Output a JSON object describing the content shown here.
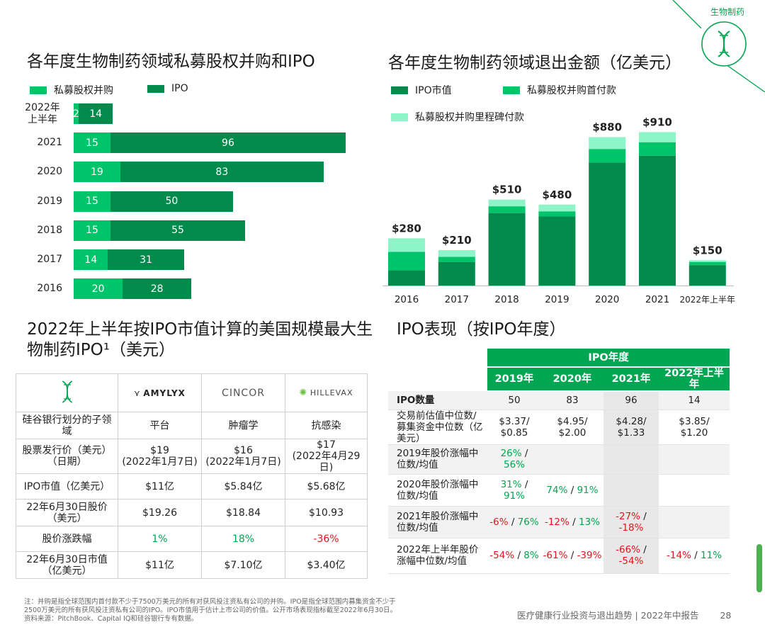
{
  "corner": {
    "label": "生物制药",
    "icon": "dna-icon"
  },
  "colors": {
    "dark_green": "#008a4b",
    "mid_green": "#00c46a",
    "light_green": "#8ef5c8",
    "accent": "#00a651",
    "neg": "#e0161b"
  },
  "left_chart": {
    "title": "各年度生物制药领域私募股权并购和IPO",
    "legend": [
      "私募股权并购",
      "IPO"
    ],
    "rows": [
      {
        "label_line1": "2022年",
        "label_line2": "上半年",
        "pe": 2,
        "ipo": 14
      },
      {
        "label_line1": "2021",
        "label_line2": "",
        "pe": 15,
        "ipo": 96
      },
      {
        "label_line1": "2020",
        "label_line2": "",
        "pe": 19,
        "ipo": 83
      },
      {
        "label_line1": "2019",
        "label_line2": "",
        "pe": 15,
        "ipo": 50
      },
      {
        "label_line1": "2018",
        "label_line2": "",
        "pe": 15,
        "ipo": 55
      },
      {
        "label_line1": "2017",
        "label_line2": "",
        "pe": 14,
        "ipo": 31
      },
      {
        "label_line1": "2016",
        "label_line2": "",
        "pe": 20,
        "ipo": 28
      }
    ]
  },
  "chart_data": [
    {
      "type": "bar",
      "orientation": "horizontal",
      "stacked": true,
      "title": "各年度生物制药领域私募股权并购和IPO",
      "categories": [
        "2022年上半年",
        "2021",
        "2020",
        "2019",
        "2018",
        "2017",
        "2016"
      ],
      "series": [
        {
          "name": "私募股权并购",
          "values": [
            2,
            15,
            19,
            15,
            15,
            14,
            20
          ]
        },
        {
          "name": "IPO",
          "values": [
            14,
            96,
            83,
            50,
            55,
            31,
            28
          ]
        }
      ],
      "legend_position": "top-left"
    },
    {
      "type": "bar",
      "stacked": true,
      "title": "各年度生物制药领域退出金额（亿美元）",
      "categories": [
        "2016",
        "2017",
        "2018",
        "2019",
        "2020",
        "2021",
        "2022年上半年"
      ],
      "totals": [
        "$280",
        "$210",
        "$510",
        "$480",
        "$880",
        "$910",
        "$150"
      ],
      "total_values": [
        280,
        210,
        510,
        480,
        880,
        910,
        150
      ],
      "series": [
        {
          "name": "IPO市值",
          "values": [
            90,
            140,
            430,
            410,
            730,
            770,
            120
          ]
        },
        {
          "name": "私募股权并购首付款",
          "values": [
            110,
            30,
            40,
            30,
            80,
            80,
            20
          ]
        },
        {
          "name": "私募股权并购里程碑付款",
          "values": [
            80,
            40,
            40,
            40,
            70,
            60,
            10
          ]
        }
      ],
      "legend_position": "top-left"
    }
  ],
  "right_chart": {
    "title": "各年度生物制药领域退出金额（亿美元）",
    "legend": [
      "IPO市值",
      "私募股权并购首付款",
      "私募股权并购里程碑付款"
    ]
  },
  "company_section": {
    "title_line1": "2022年上半年按IPO市值计算的美国规模最大生",
    "title_line2": "物制药IPO¹（美元）",
    "companies": [
      "AMYLYX",
      "CINCOR",
      "HILLEVAX"
    ],
    "rows": [
      {
        "label": "硅谷银行划分的子领域",
        "values": [
          "平台",
          "肿瘤学",
          "抗感染"
        ]
      },
      {
        "label": "股票发行价（美元）（日期）",
        "values": [
          "$19\n(2022年1月7日)",
          "$16\n(2022年1月7日)",
          "$17\n(2022年4月29日)"
        ]
      },
      {
        "label": "IPO市值（亿美元）",
        "values": [
          "$11亿",
          "$5.84亿",
          "$5.68亿"
        ]
      },
      {
        "label": "22年6月30日股价（美元）",
        "values": [
          "$19.26",
          "$18.84",
          "$10.93"
        ]
      },
      {
        "label": "股价涨跌幅",
        "values": [
          "1%",
          "18%",
          "-36%"
        ]
      },
      {
        "label": "22年6月30日市值（亿美元）",
        "values": [
          "$11亿",
          "$7.10亿",
          "$3.40亿"
        ]
      }
    ]
  },
  "ipo_section": {
    "title": "IPO表现（按IPO年度）",
    "group_header": "IPO年度",
    "years": [
      "2019年",
      "2020年",
      "2021年",
      "2022年上半年"
    ],
    "rows": [
      {
        "label": "IPO数量",
        "cells": [
          "50",
          "83",
          "96",
          "14"
        ]
      },
      {
        "label": "交易前估值中位数/募集资金中位数（亿美元）",
        "cells": [
          "$3.37/\n$0.85",
          "$4.95/\n$2.00",
          "$4.28/\n$1.33",
          "$3.85/\n$1.20"
        ]
      },
      {
        "label": "2019年股价涨幅中位数/均值",
        "cells": [
          [
            "26%",
            "56%"
          ],
          null,
          null,
          null
        ]
      },
      {
        "label": "2020年股价涨幅中位数/均值",
        "cells": [
          [
            "31%",
            "91%"
          ],
          [
            "74%",
            "91%"
          ],
          null,
          null
        ]
      },
      {
        "label": "2021年股价涨幅中位数/均值",
        "cells": [
          [
            "-6%",
            "76%"
          ],
          [
            "-12%",
            "13%"
          ],
          [
            "-27%",
            "-18%"
          ],
          null
        ]
      },
      {
        "label": "2022年上半年股价涨幅中位数/均值",
        "cells": [
          [
            "-54%",
            "8%"
          ],
          [
            "-61%",
            "-39%"
          ],
          [
            "-66%",
            "-54%"
          ],
          [
            "-14%",
            "11%"
          ]
        ]
      }
    ]
  },
  "footer": {
    "note_line1": "注：并购是指全球范围内首付款不少于7500万美元的所有对获风投注资私有公司的并购。IPO是指全球范围内募集资金不少于",
    "note_line2": "2500万美元的所有获风投注资私有公司的IPO。IPO市值用于估计上市公司的价值。公开市场表现指标截至2022年6月30日。",
    "note_line3": "资料来源：PitchBook、Capital IQ和硅谷银行专有数据。",
    "report": "医疗健康行业投资与退出趋势 | 2022年中报告",
    "page": "28"
  }
}
